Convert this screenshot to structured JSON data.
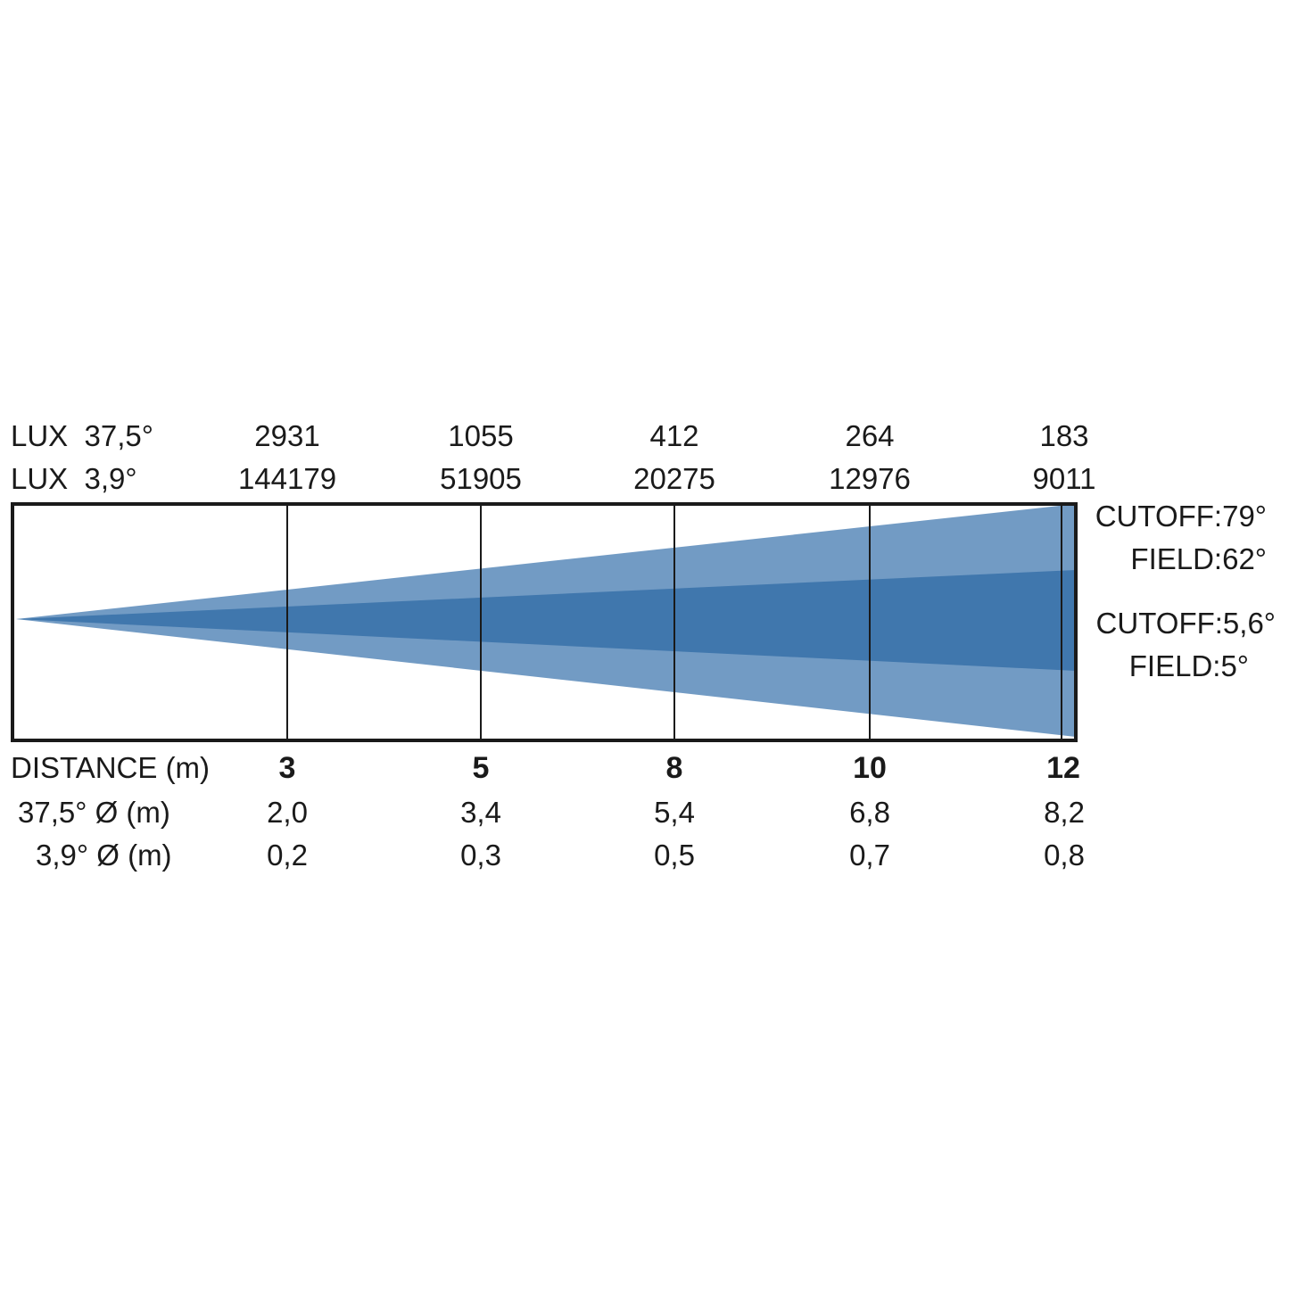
{
  "rows": {
    "lux_wide_label": "LUX  37,5°",
    "lux_narrow_label": "LUX  3,9°",
    "distance_label": "DISTANCE (m)",
    "dia_wide_label": "37,5° Ø (m)",
    "dia_narrow_label": "3,9° Ø (m)"
  },
  "angles": {
    "wide_cutoff": "CUTOFF:79°",
    "wide_field": "FIELD:62°",
    "narrow_cutoff": "CUTOFF:5,6°",
    "narrow_field": "FIELD:5°"
  },
  "colors": {
    "wide_beam": "#729BC4",
    "narrow_beam": "#4077AD",
    "frame": "#1a1a1a"
  },
  "chart_data": {
    "type": "table",
    "columns": [
      {
        "distance": "3",
        "lux_wide": "2931",
        "lux_narrow": "144179",
        "dia_wide": "2,0",
        "dia_narrow": "0,2"
      },
      {
        "distance": "5",
        "lux_wide": "1055",
        "lux_narrow": "51905",
        "dia_wide": "3,4",
        "dia_narrow": "0,3"
      },
      {
        "distance": "8",
        "lux_wide": "412",
        "lux_narrow": "20275",
        "dia_wide": "5,4",
        "dia_narrow": "0,5"
      },
      {
        "distance": "10",
        "lux_wide": "264",
        "lux_narrow": "12976",
        "dia_wide": "6,8",
        "dia_narrow": "0,7"
      },
      {
        "distance": "12",
        "lux_wide": "183",
        "lux_narrow": "9011",
        "dia_wide": "8,2",
        "dia_narrow": "0,8"
      }
    ]
  }
}
